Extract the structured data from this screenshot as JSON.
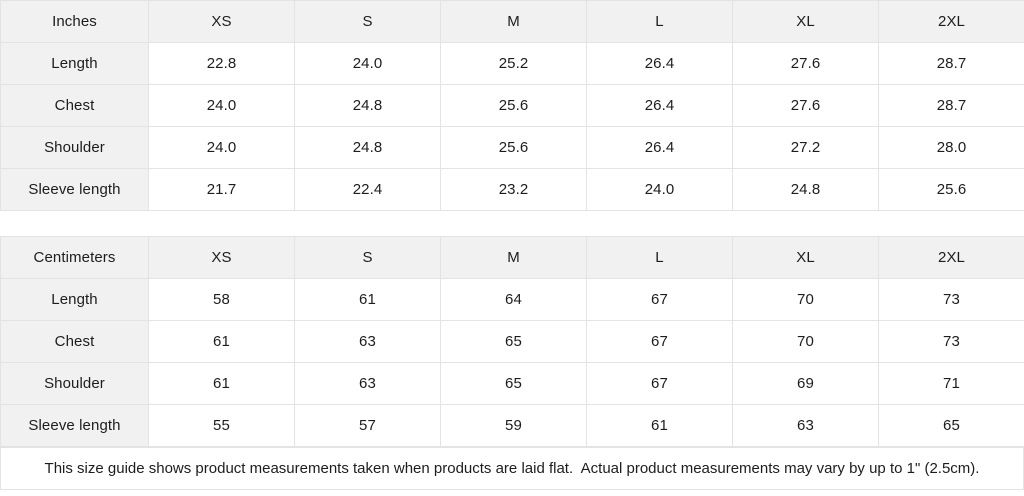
{
  "tables": [
    {
      "unit_label": "Inches",
      "header": [
        "Inches",
        "XS",
        "S",
        "M",
        "L",
        "XL",
        "2XL"
      ],
      "rows": [
        {
          "label": "Length",
          "values": [
            "22.8",
            "24.0",
            "25.2",
            "26.4",
            "27.6",
            "28.7"
          ]
        },
        {
          "label": "Chest",
          "values": [
            "24.0",
            "24.8",
            "25.6",
            "26.4",
            "27.6",
            "28.7"
          ]
        },
        {
          "label": "Shoulder",
          "values": [
            "24.0",
            "24.8",
            "25.6",
            "26.4",
            "27.2",
            "28.0"
          ]
        },
        {
          "label": "Sleeve length",
          "values": [
            "21.7",
            "22.4",
            "23.2",
            "24.0",
            "24.8",
            "25.6"
          ]
        }
      ]
    },
    {
      "unit_label": "Centimeters",
      "header": [
        "Centimeters",
        "XS",
        "S",
        "M",
        "L",
        "XL",
        "2XL"
      ],
      "rows": [
        {
          "label": "Length",
          "values": [
            "58",
            "61",
            "64",
            "67",
            "70",
            "73"
          ]
        },
        {
          "label": "Chest",
          "values": [
            "61",
            "63",
            "65",
            "67",
            "70",
            "73"
          ]
        },
        {
          "label": "Shoulder",
          "values": [
            "61",
            "63",
            "65",
            "67",
            "69",
            "71"
          ]
        },
        {
          "label": "Sleeve length",
          "values": [
            "55",
            "57",
            "59",
            "61",
            "63",
            "65"
          ]
        }
      ]
    }
  ],
  "footer": {
    "note": "This size guide shows product measurements taken when products are laid flat.  Actual product measurements may vary by up to 1\" (2.5cm)."
  },
  "colors": {
    "header_bg": "#f1f1f1",
    "cell_bg": "#ffffff",
    "border": "#e3e3e3",
    "text": "#1d1d1f"
  }
}
